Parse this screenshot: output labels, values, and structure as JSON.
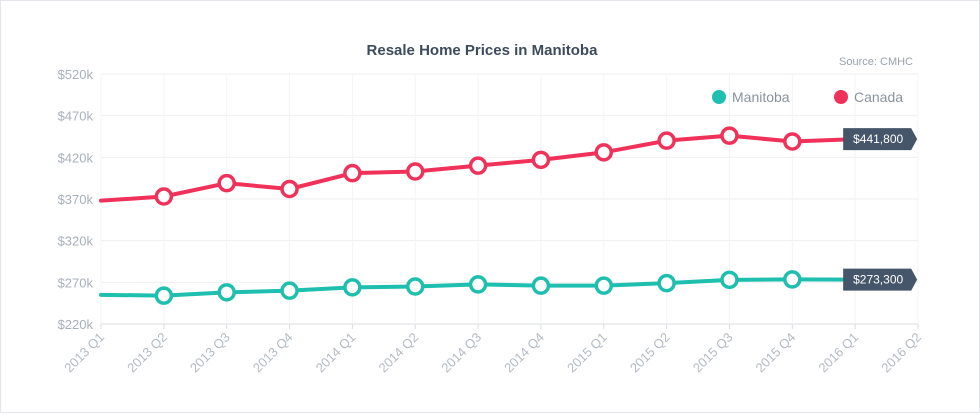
{
  "chart_data": {
    "type": "line",
    "title": "Resale Home Prices in Manitoba",
    "source": "Source: CMHC",
    "categories": [
      "2013 Q1",
      "2013 Q2",
      "2013 Q3",
      "2013 Q4",
      "2014 Q1",
      "2014 Q2",
      "2014 Q3",
      "2014 Q4",
      "2015 Q1",
      "2015 Q2",
      "2015 Q3",
      "2015 Q4",
      "2016 Q1",
      "2016 Q2"
    ],
    "y_ticks": [
      "$220k",
      "$270k",
      "$320k",
      "$370k",
      "$420k",
      "$470k",
      "$520k"
    ],
    "ylim": [
      220000,
      520000
    ],
    "grid": true,
    "legend_position": "top-right",
    "series": [
      {
        "name": "Canada",
        "color": "#f0325a",
        "values": [
          368000,
          373000,
          389000,
          382000,
          401000,
          403000,
          410000,
          417000,
          426000,
          440000,
          446000,
          439000,
          441800,
          null
        ],
        "last_label": "$441,800"
      },
      {
        "name": "Manitoba",
        "color": "#1ebfae",
        "values": [
          255000,
          254000,
          258000,
          260000,
          264000,
          265000,
          267500,
          266000,
          266000,
          269000,
          273000,
          273500,
          273300,
          null
        ],
        "last_label": "$273,300"
      }
    ]
  },
  "legend": {
    "items": [
      {
        "name": "Manitoba",
        "color": "#1ebfae"
      },
      {
        "name": "Canada",
        "color": "#f0325a"
      }
    ]
  }
}
